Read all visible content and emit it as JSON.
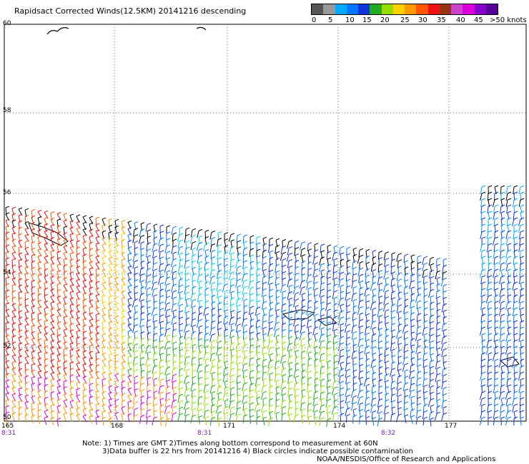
{
  "title": "Rapidsact Corrected Winds(12.5KM) 20141216 descending",
  "legend": {
    "colors": [
      "#555555",
      "#999999",
      "#00aaff",
      "#0077ff",
      "#1133dd",
      "#22aa22",
      "#99dd00",
      "#ffd000",
      "#ff9900",
      "#ff5500",
      "#ee1111",
      "#993311",
      "#cc44cc",
      "#dd00dd",
      "#8800cc",
      "#550099"
    ],
    "labels": [
      "0",
      "5",
      "10",
      "15",
      "20",
      "25",
      "30",
      "35",
      "40",
      "45",
      ">50 knots"
    ]
  },
  "lat_labels": [
    "60",
    "58",
    "56",
    "54",
    "52",
    "50"
  ],
  "lon_labels": [
    "165",
    "168",
    "171",
    "174",
    "177"
  ],
  "time_labels": [
    "8:31",
    "8:31",
    "8:32"
  ],
  "notes": {
    "line1": "Note: 1) Times are GMT 2)Times along bottom correspond to measurement at 60N",
    "line2": "3)Data buffer is 22 hrs from 20141216 4) Black circles indicate possible contamination",
    "line3": "NOAA/NESDIS/Office of Research and Applications"
  }
}
